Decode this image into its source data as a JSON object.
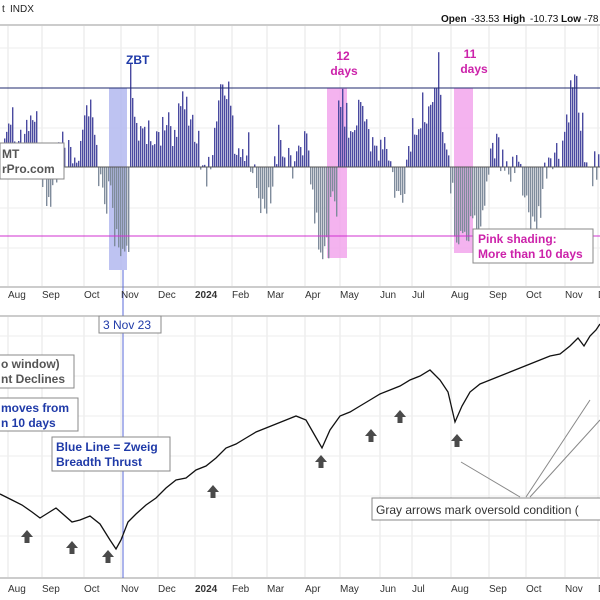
{
  "header": {
    "symbol_fragment": "t",
    "exchange": "INDX",
    "open_label": "Open",
    "open_value": "-33.53",
    "high_label": "High",
    "high_value": "-10.73",
    "low_label": "Low",
    "low_value": "-78"
  },
  "colors": {
    "up_bar": "#4a4aa0",
    "down_bar": "#7f8c9c",
    "blue_shade": "#b3b8f0",
    "pink_shade": "#f2a6ec",
    "magenta_line": "#d030d0",
    "navy_line": "#1f2a6e",
    "zbt_line": "#5a6ad8",
    "annotation_blue": "#1f3aa8",
    "annotation_pink": "#cc22aa",
    "price_line": "#111111",
    "arrow": "#4a4a4a"
  },
  "annotations": {
    "zbt": "ZBT",
    "days12_a": "12",
    "days12_b": "days",
    "days11_a": "11",
    "days11_b": "days",
    "watermark_a": "MT",
    "watermark_b": "rPro.com",
    "pink_box_a": "Pink shading:",
    "pink_box_b": "More than 10 days",
    "date_box": "3 Nov 23",
    "window_a": "o window)",
    "window_b": "nt Declines",
    "moves_a": "moves from",
    "moves_b": "n 10 days",
    "blue_box_a": "Blue Line = Zweig",
    "blue_box_b": "Breadth Thrust",
    "gray_box": "Gray arrows mark oversold condition ("
  },
  "chart_data": [
    {
      "type": "bar",
      "panel": "top",
      "x": [
        "Aug",
        "Sep",
        "Oct",
        "Nov",
        "Dec",
        "2024",
        "Feb",
        "Mar",
        "Apr",
        "May",
        "Jun",
        "Jul",
        "Aug",
        "Sep",
        "Oct",
        "Nov",
        "Dec"
      ],
      "xlabel": "",
      "ylabel": "",
      "reference_lines": [
        "upper threshold (navy)",
        "zero",
        "lower threshold (magenta)"
      ],
      "shaded_periods": [
        {
          "label": "ZBT",
          "color": "blue",
          "start": "late Oct 2023",
          "end": "early Nov 2023"
        },
        {
          "label": "12 days",
          "color": "pink",
          "start": "mid Apr 2024",
          "end": "early May 2024"
        },
        {
          "label": "11 days",
          "color": "pink",
          "start": "early Aug 2024",
          "end": "mid Aug 2024"
        }
      ],
      "grid": true
    },
    {
      "type": "line",
      "panel": "bottom",
      "x": [
        "Aug",
        "Sep",
        "Oct",
        "Nov",
        "Dec",
        "2024",
        "Feb",
        "Mar",
        "Apr",
        "May",
        "Jun",
        "Jul",
        "Aug",
        "Sep",
        "Oct",
        "Nov",
        "Dec"
      ],
      "xlabel": "",
      "ylabel": "",
      "vertical_marker": "3 Nov 23",
      "grid": true
    }
  ]
}
